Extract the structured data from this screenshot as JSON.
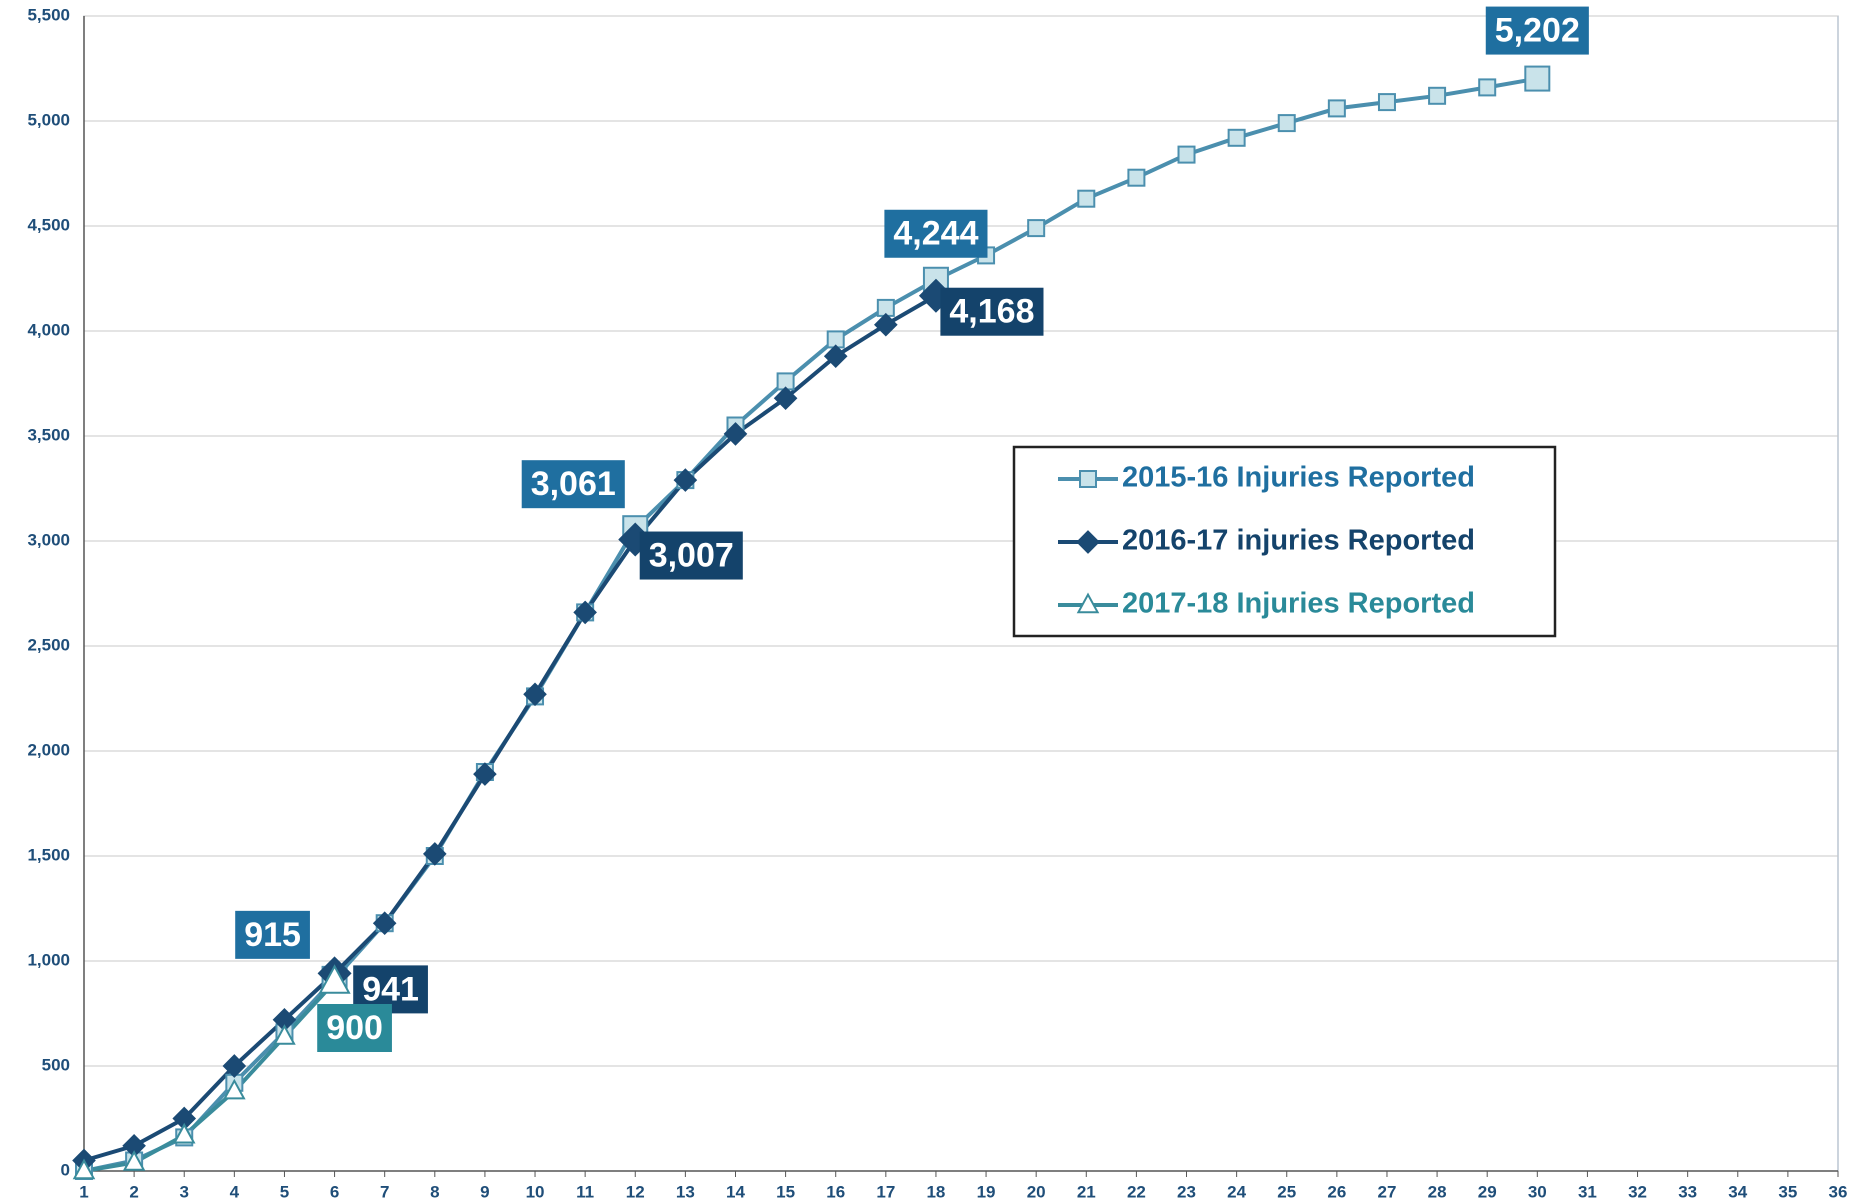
{
  "chart_data": {
    "type": "line",
    "x": [
      1,
      2,
      3,
      4,
      5,
      6,
      7,
      8,
      9,
      10,
      11,
      12,
      13,
      14,
      15,
      16,
      17,
      18,
      19,
      20,
      21,
      22,
      23,
      24,
      25,
      26,
      27,
      28,
      29,
      30
    ],
    "xlim": [
      1,
      36
    ],
    "xticks": [
      1,
      2,
      3,
      4,
      5,
      6,
      7,
      8,
      9,
      10,
      11,
      12,
      13,
      14,
      15,
      16,
      17,
      18,
      19,
      20,
      21,
      22,
      23,
      24,
      25,
      26,
      27,
      28,
      29,
      30,
      31,
      32,
      33,
      34,
      35,
      36
    ],
    "ylim": [
      0,
      5500
    ],
    "yticks": [
      0,
      500,
      {
        "value": 1000,
        "label": "1,000"
      },
      {
        "value": 1500,
        "label": "1,500"
      },
      {
        "value": 2000,
        "label": "2,000"
      },
      {
        "value": 2500,
        "label": "2,500"
      },
      {
        "value": 3000,
        "label": "3,000"
      },
      {
        "value": 3500,
        "label": "3,500"
      },
      {
        "value": 4000,
        "label": "4,000"
      },
      {
        "value": 4500,
        "label": "4,500"
      },
      {
        "value": 5000,
        "label": "5,000"
      },
      {
        "value": 5500,
        "label": "5,500"
      }
    ],
    "grid": true,
    "legend": "right",
    "series": [
      {
        "name": "2015-16 Injuries Reported",
        "color": "#4b8fae",
        "marker": "square",
        "values": [
          0,
          50,
          160,
          420,
          660,
          915,
          1180,
          1500,
          1900,
          2260,
          2660,
          3061,
          3290,
          3550,
          3760,
          3960,
          4110,
          4244,
          4360,
          4490,
          4630,
          4730,
          4840,
          4920,
          4990,
          5060,
          5090,
          5120,
          5160,
          5202
        ],
        "value_labels": [
          null,
          null,
          null,
          null,
          null,
          "915",
          null,
          null,
          null,
          null,
          null,
          "3,061",
          null,
          null,
          null,
          null,
          null,
          "4,244",
          null,
          null,
          null,
          null,
          null,
          null,
          null,
          null,
          null,
          null,
          null,
          "5,202"
        ]
      },
      {
        "name": "2016-17 injuries Reported",
        "color": "#1b4a74",
        "marker": "diamond",
        "values": [
          50,
          120,
          250,
          500,
          720,
          941,
          1180,
          1510,
          1890,
          2270,
          2660,
          3007,
          3290,
          3510,
          3680,
          3880,
          4030,
          4168,
          null,
          null,
          null,
          null,
          null,
          null,
          null,
          null,
          null,
          null,
          null,
          null
        ],
        "value_labels": [
          null,
          null,
          null,
          null,
          null,
          "941",
          null,
          null,
          null,
          null,
          null,
          "3,007",
          null,
          null,
          null,
          null,
          null,
          "4,168",
          null,
          null,
          null,
          null,
          null,
          null,
          null,
          null,
          null,
          null,
          null,
          null
        ]
      },
      {
        "name": "2017-18 Injuries Reported",
        "color": "#3a8c9c",
        "marker": "triangle",
        "values": [
          0,
          40,
          170,
          380,
          640,
          900,
          null,
          null,
          null,
          null,
          null,
          null,
          null,
          null,
          null,
          null,
          null,
          null,
          null,
          null,
          null,
          null,
          null,
          null,
          null,
          null,
          null,
          null,
          null,
          null
        ],
        "value_labels": [
          null,
          null,
          null,
          null,
          null,
          "900",
          null,
          null,
          null,
          null,
          null,
          null,
          null,
          null,
          null,
          null,
          null,
          null,
          null,
          null,
          null,
          null,
          null,
          null,
          null,
          null,
          null,
          null,
          null,
          null
        ]
      }
    ]
  }
}
